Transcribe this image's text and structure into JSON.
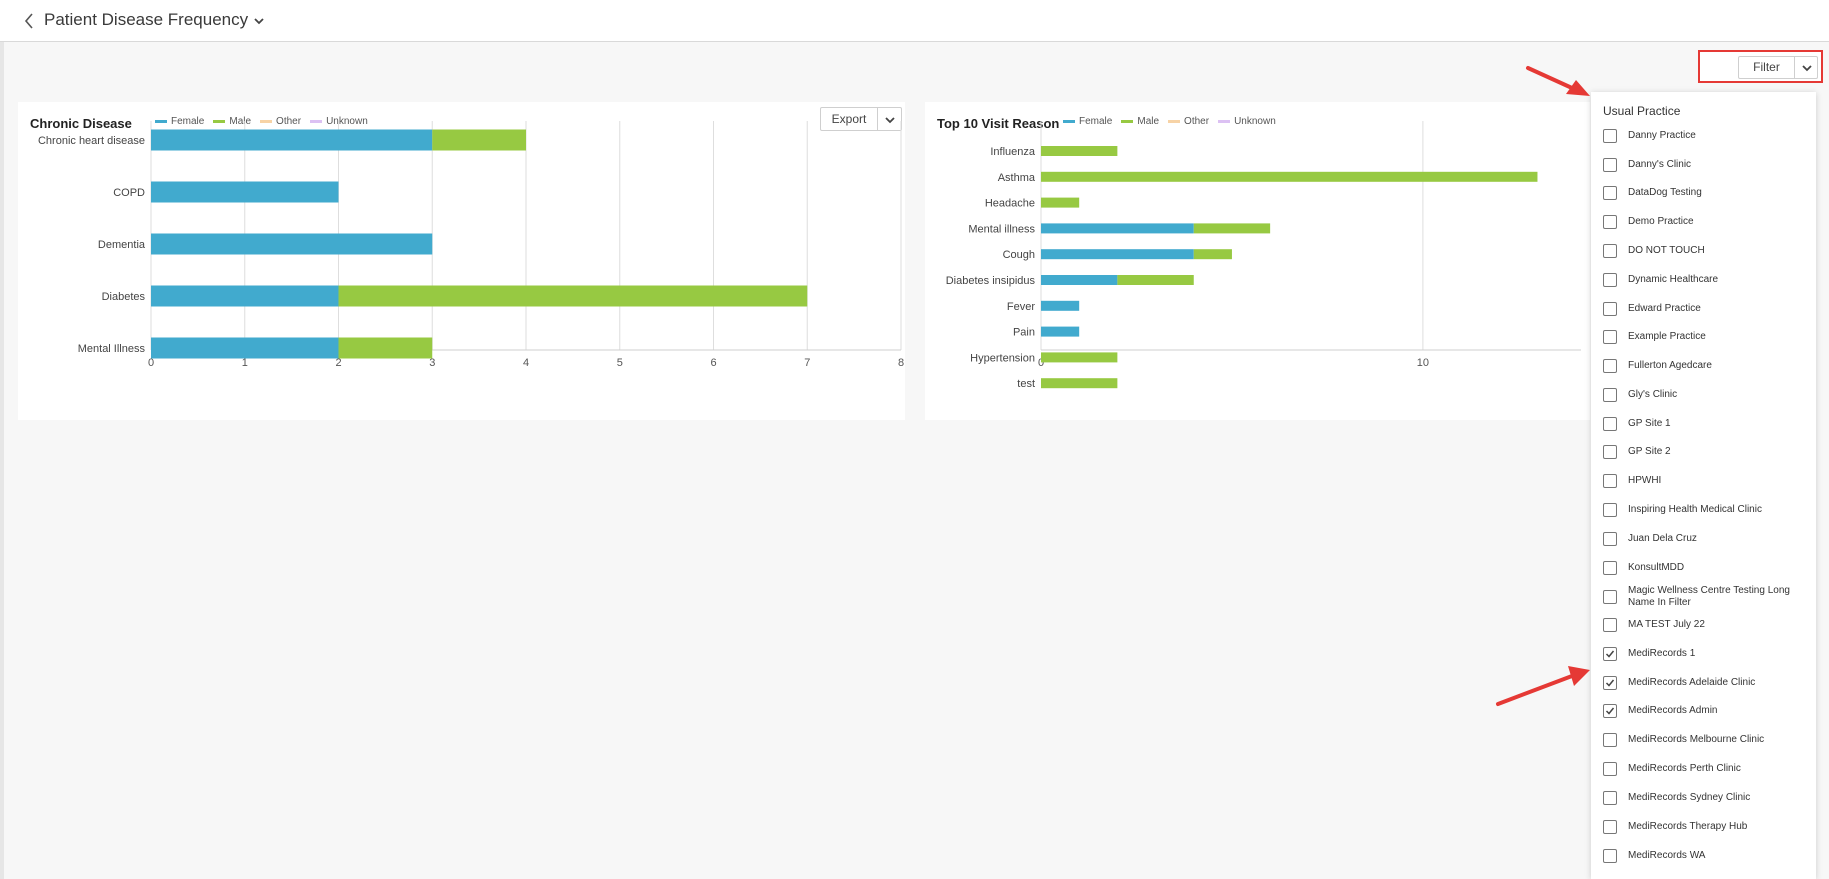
{
  "header": {
    "title": "Patient Disease Frequency"
  },
  "toolbar": {
    "filter_label": "Filter"
  },
  "legend": [
    {
      "label": "Female",
      "color": "#41aace"
    },
    {
      "label": "Male",
      "color": "#97c942"
    },
    {
      "label": "Other",
      "color": "#f7d3a6"
    },
    {
      "label": "Unknown",
      "color": "#dcc1f3"
    }
  ],
  "chronic_card": {
    "title": "Chronic Disease",
    "export_label": "Export"
  },
  "visit_card": {
    "title": "Top 10 Visit Reason"
  },
  "chart_data": [
    {
      "type": "bar",
      "orientation": "horizontal",
      "stacked": true,
      "title": "Chronic Disease",
      "categories": [
        "Chronic heart disease",
        "COPD",
        "Dementia",
        "Diabetes",
        "Mental Illness"
      ],
      "series": [
        {
          "name": "Female",
          "values": [
            3,
            2,
            3,
            2,
            2
          ]
        },
        {
          "name": "Male",
          "values": [
            1,
            0,
            0,
            5,
            1
          ]
        },
        {
          "name": "Other",
          "values": [
            0,
            0,
            0,
            0,
            0
          ]
        },
        {
          "name": "Unknown",
          "values": [
            0,
            0,
            0,
            0,
            0
          ]
        }
      ],
      "xlim": [
        0,
        8
      ],
      "xticks": [
        "0",
        "1",
        "2",
        "3",
        "4",
        "5",
        "6",
        "7",
        "8"
      ],
      "grid": true,
      "legend_position": "top"
    },
    {
      "type": "bar",
      "orientation": "horizontal",
      "stacked": true,
      "title": "Top 10 Visit Reason",
      "categories": [
        "Influenza",
        "Asthma",
        "Headache",
        "Mental illness",
        "Cough",
        "Diabetes insipidus",
        "Fever",
        "Pain",
        "Hypertension",
        "test"
      ],
      "series": [
        {
          "name": "Female",
          "values": [
            0,
            0,
            0,
            4,
            4,
            2,
            1,
            1,
            0,
            0
          ]
        },
        {
          "name": "Male",
          "values": [
            2,
            13,
            1,
            2,
            1,
            2,
            0,
            0,
            2,
            2
          ]
        },
        {
          "name": "Other",
          "values": [
            0,
            0,
            0,
            0,
            0,
            0,
            0,
            0,
            0,
            0
          ]
        },
        {
          "name": "Unknown",
          "values": [
            0,
            0,
            0,
            0,
            0,
            0,
            0,
            0,
            0,
            0
          ]
        }
      ],
      "xlim": [
        0,
        14.14
      ],
      "xticks": [
        "0",
        "10"
      ],
      "grid": true,
      "legend_position": "top"
    }
  ],
  "filter_panel": {
    "header": "Usual Practice",
    "options": [
      {
        "label": "Danny Practice",
        "checked": false
      },
      {
        "label": "Danny's Clinic",
        "checked": false
      },
      {
        "label": "DataDog Testing",
        "checked": false
      },
      {
        "label": "Demo Practice",
        "checked": false
      },
      {
        "label": "DO NOT TOUCH",
        "checked": false
      },
      {
        "label": "Dynamic Healthcare",
        "checked": false
      },
      {
        "label": "Edward Practice",
        "checked": false
      },
      {
        "label": "Example Practice",
        "checked": false
      },
      {
        "label": "Fullerton Agedcare",
        "checked": false
      },
      {
        "label": "Gly's Clinic",
        "checked": false
      },
      {
        "label": "GP Site 1",
        "checked": false
      },
      {
        "label": "GP Site 2",
        "checked": false
      },
      {
        "label": "HPWHI",
        "checked": false
      },
      {
        "label": "Inspiring Health Medical Clinic",
        "checked": false
      },
      {
        "label": "Juan Dela Cruz",
        "checked": false
      },
      {
        "label": "KonsultMDD",
        "checked": false
      },
      {
        "label": "Magic Wellness Centre Testing Long Name In Filter",
        "checked": false
      },
      {
        "label": "MA TEST July 22",
        "checked": false
      },
      {
        "label": "MediRecords 1",
        "checked": true
      },
      {
        "label": "MediRecords Adelaide Clinic",
        "checked": true
      },
      {
        "label": "MediRecords Admin",
        "checked": true
      },
      {
        "label": "MediRecords Melbourne Clinic",
        "checked": false
      },
      {
        "label": "MediRecords Perth Clinic",
        "checked": false
      },
      {
        "label": "MediRecords Sydney Clinic",
        "checked": false
      },
      {
        "label": "MediRecords Therapy Hub",
        "checked": false
      },
      {
        "label": "MediRecords WA",
        "checked": false
      }
    ]
  },
  "annotation_color": "#e53935"
}
